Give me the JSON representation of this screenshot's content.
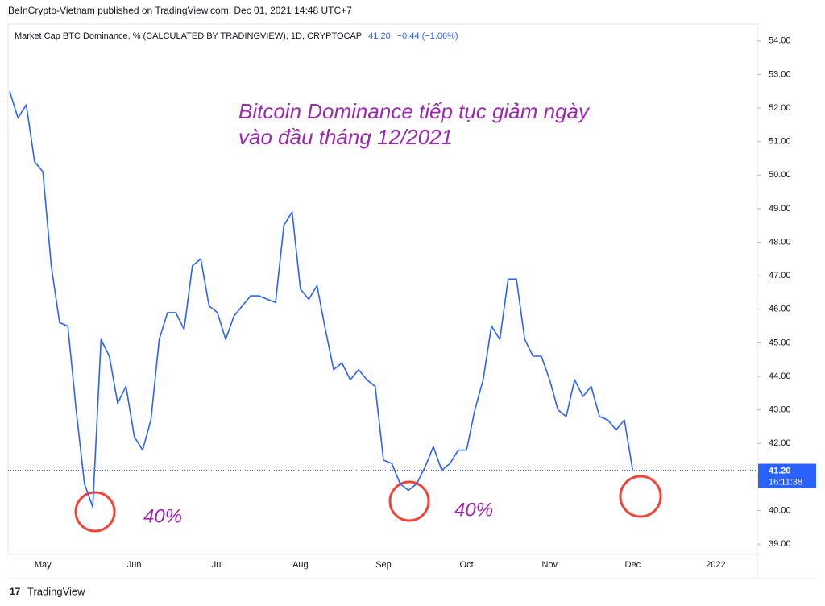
{
  "chart_data": {
    "type": "line",
    "header": "BeInCrypto-Vietnam published on TradingView.com, Dec 01, 2021 14:48 UTC+7",
    "legend_value": "41.20",
    "legend_change": "−0.44 (−1.06%)",
    "annotations": [
      "Bitcoin Dominance tiếp tục giảm ngày",
      "vào đầu tháng 12/2021",
      "40%",
      "40%"
    ],
    "last_price": {
      "value": 41.2,
      "label": "41.20"
    },
    "countdown": "16:11:38",
    "footer": "TradingView",
    "categories": [
      null,
      null,
      null,
      null,
      "May",
      null,
      null,
      null,
      null,
      null,
      null,
      null,
      null,
      null,
      null,
      "Jun",
      null,
      null,
      null,
      null,
      null,
      null,
      null,
      null,
      null,
      "Jul",
      null,
      null,
      null,
      null,
      null,
      null,
      null,
      null,
      null,
      "Aug",
      null,
      null,
      null,
      null,
      null,
      null,
      null,
      null,
      null,
      "Sep",
      null,
      null,
      null,
      null,
      null,
      null,
      null,
      null,
      null,
      "Oct",
      null,
      null,
      null,
      null,
      null,
      null,
      null,
      null,
      null,
      "Nov",
      null,
      null,
      null,
      null,
      null,
      null,
      null,
      null,
      null,
      "Dec",
      null,
      null,
      null,
      null,
      null,
      null,
      null,
      null,
      null,
      "2022",
      null,
      null,
      null,
      null
    ],
    "series": [
      {
        "name": "Market Cap BTC Dominance, % (CALCULATED BY TRADINGVIEW), 1D, CRYPTOCAP",
        "color": "#2962ff",
        "values": [
          52.5,
          51.7,
          52.1,
          50.4,
          50.1,
          47.3,
          45.6,
          45.5,
          43.0,
          40.8,
          40.1,
          45.1,
          44.6,
          43.2,
          43.7,
          42.2,
          41.8,
          42.7,
          45.1,
          45.9,
          45.9,
          45.4,
          47.3,
          47.5,
          46.1,
          45.9,
          45.1,
          45.8,
          46.1,
          46.4,
          46.4,
          46.3,
          46.2,
          48.5,
          48.9,
          46.6,
          46.3,
          46.7,
          45.4,
          44.2,
          44.4,
          43.9,
          44.2,
          43.9,
          43.7,
          41.5,
          41.4,
          40.8,
          40.6,
          40.8,
          41.3,
          41.9,
          41.2,
          41.4,
          41.8,
          41.8,
          43.0,
          43.9,
          45.5,
          45.1,
          46.9,
          46.9,
          45.1,
          44.6,
          44.6,
          43.9,
          43.0,
          42.8,
          43.9,
          43.4,
          43.7,
          42.8,
          42.7,
          42.4,
          42.7,
          41.2,
          null,
          null,
          null,
          null,
          null,
          null,
          null,
          null,
          null,
          null,
          null,
          null,
          null,
          null
        ]
      }
    ],
    "ylim": [
      38.69,
      54.5
    ],
    "yticks": [
      {
        "value": 39,
        "label": "39.00"
      },
      {
        "value": 40,
        "label": "40.00"
      },
      {
        "value": 41,
        "label": "41.00"
      },
      {
        "value": 42,
        "label": "42.00"
      },
      {
        "value": 43,
        "label": "43.00"
      },
      {
        "value": 44,
        "label": "44.00"
      },
      {
        "value": 45,
        "label": "45.00"
      },
      {
        "value": 46,
        "label": "46.00"
      },
      {
        "value": 47,
        "label": "47.00"
      },
      {
        "value": 48,
        "label": "48.00"
      },
      {
        "value": 49,
        "label": "49.00"
      },
      {
        "value": 50,
        "label": "50.00"
      },
      {
        "value": 51,
        "label": "51.00"
      },
      {
        "value": 52,
        "label": "52.00"
      },
      {
        "value": 53,
        "label": "53.00"
      },
      {
        "value": 54,
        "label": "54.00"
      }
    ],
    "grid": false
  }
}
